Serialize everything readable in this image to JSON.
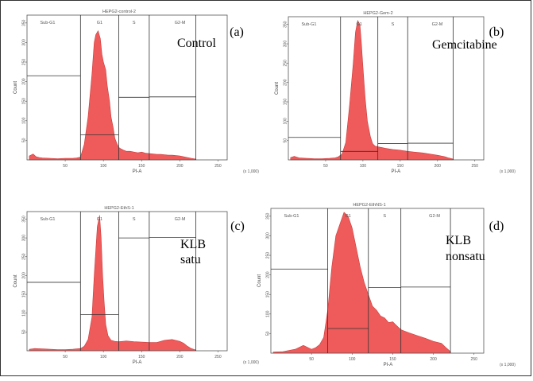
{
  "chart_data": [
    {
      "type": "area",
      "title": "HEPG2-control-2",
      "panel_label": "(a)",
      "treatment": "Control",
      "treatment_line2": "",
      "xlabel": "PI-A",
      "ylabel": "Count",
      "xunit": "(x 1,000)",
      "xticks": [
        "50",
        "100",
        "150",
        "200",
        "250"
      ],
      "yticks": [
        "50",
        "100",
        "150",
        "200",
        "250",
        "300",
        "350"
      ],
      "xlim": [
        0,
        262
      ],
      "ylim": [
        0,
        370
      ],
      "fill_color": "#ef5b5b",
      "gates": [
        {
          "label": "Sub-G1",
          "x0": 0,
          "x1": 70,
          "y": 215
        },
        {
          "label": "G1",
          "x0": 70,
          "x1": 120,
          "y": 64
        },
        {
          "label": "S",
          "x0": 120,
          "x1": 160,
          "y": 160
        },
        {
          "label": "G2-M",
          "x0": 160,
          "x1": 221,
          "y": 161
        }
      ],
      "histogram": {
        "x": [
          3,
          8,
          12,
          16,
          20,
          30,
          40,
          50,
          60,
          65,
          70,
          75,
          80,
          85,
          88,
          90,
          93,
          96,
          98,
          100,
          103,
          105,
          108,
          110,
          113,
          115,
          118,
          120,
          123,
          126,
          130,
          135,
          140,
          145,
          150,
          155,
          160,
          165,
          170,
          175,
          180,
          185,
          190,
          195,
          200,
          205,
          210,
          215,
          221
        ],
        "y": [
          10,
          15,
          8,
          6,
          5,
          4,
          3,
          4,
          4,
          5,
          7,
          40,
          110,
          220,
          300,
          320,
          330,
          310,
          270,
          250,
          230,
          190,
          150,
          110,
          80,
          55,
          40,
          32,
          28,
          25,
          22,
          22,
          20,
          18,
          20,
          17,
          16,
          15,
          14,
          14,
          13,
          12,
          12,
          11,
          10,
          8,
          6,
          4,
          2
        ]
      }
    },
    {
      "type": "area",
      "title": "HEPG2-Gem-2",
      "panel_label": "(b)",
      "treatment": "Gemcitabine",
      "treatment_line2": "",
      "xlabel": "PI-A",
      "ylabel": "Count",
      "xunit": "(x 1,000)",
      "xticks": [
        "50",
        "100",
        "150",
        "200",
        "250"
      ],
      "yticks": [
        "50",
        "100",
        "150",
        "200",
        "250",
        "300",
        "350"
      ],
      "xlim": [
        0,
        262
      ],
      "ylim": [
        0,
        370
      ],
      "fill_color": "#ef5b5b",
      "gates": [
        {
          "label": "Sub-G1",
          "x0": 0,
          "x1": 70,
          "y": 58
        },
        {
          "label": "G1",
          "x0": 70,
          "x1": 120,
          "y": 22
        },
        {
          "label": "S",
          "x0": 120,
          "x1": 160,
          "y": 42
        },
        {
          "label": "G2-M",
          "x0": 160,
          "x1": 221,
          "y": 43
        }
      ],
      "histogram": {
        "x": [
          3,
          8,
          15,
          25,
          35,
          45,
          55,
          62,
          67,
          72,
          77,
          82,
          87,
          90,
          93,
          96,
          98,
          100,
          103,
          106,
          110,
          113,
          116,
          120,
          125,
          130,
          140,
          150,
          160,
          170,
          180,
          190,
          200,
          210,
          215,
          221
        ],
        "y": [
          6,
          9,
          5,
          4,
          3,
          3,
          4,
          5,
          8,
          15,
          45,
          140,
          250,
          330,
          360,
          350,
          300,
          240,
          160,
          100,
          60,
          42,
          36,
          34,
          32,
          30,
          27,
          25,
          22,
          20,
          18,
          15,
          12,
          8,
          5,
          2
        ]
      }
    },
    {
      "type": "area",
      "title": "HEPG2-EthS-1",
      "panel_label": "(c)",
      "treatment": "KLB",
      "treatment_line2": "satu",
      "xlabel": "PI-A",
      "ylabel": "Count",
      "xunit": "(x 1,000)",
      "xticks": [
        "50",
        "100",
        "150",
        "200",
        "250"
      ],
      "yticks": [
        "50",
        "100",
        "150",
        "200",
        "250",
        "300",
        "350"
      ],
      "xlim": [
        0,
        262
      ],
      "ylim": [
        0,
        370
      ],
      "fill_color": "#ef5b5b",
      "gates": [
        {
          "label": "Sub-G1",
          "x0": 0,
          "x1": 70,
          "y": 182
        },
        {
          "label": "G1",
          "x0": 70,
          "x1": 120,
          "y": 96
        },
        {
          "label": "S",
          "x0": 120,
          "x1": 160,
          "y": 300
        },
        {
          "label": "G2-M",
          "x0": 160,
          "x1": 221,
          "y": 301
        }
      ],
      "histogram": {
        "x": [
          3,
          10,
          20,
          30,
          40,
          50,
          60,
          65,
          70,
          75,
          80,
          85,
          88,
          92,
          95,
          97,
          99,
          101,
          103,
          106,
          110,
          115,
          120,
          125,
          130,
          140,
          150,
          160,
          170,
          180,
          190,
          200,
          205,
          210,
          215,
          221
        ],
        "y": [
          4,
          6,
          5,
          4,
          3,
          3,
          4,
          5,
          6,
          12,
          30,
          90,
          200,
          330,
          360,
          300,
          200,
          130,
          70,
          40,
          28,
          25,
          24,
          25,
          26,
          24,
          23,
          22,
          22,
          28,
          30,
          25,
          20,
          12,
          6,
          2
        ]
      }
    },
    {
      "type": "area",
      "title": "HEPG2-EthNS-1",
      "panel_label": "(d)",
      "treatment": "KLB",
      "treatment_line2": "nonsatu",
      "xlabel": "PI-A",
      "ylabel": "Count",
      "xunit": "(x 1,000)",
      "xticks": [
        "50",
        "100",
        "150",
        "200",
        "250"
      ],
      "yticks": [
        "50",
        "100",
        "150",
        "200",
        "250",
        "300",
        "350"
      ],
      "xlim": [
        0,
        262
      ],
      "ylim": [
        0,
        370
      ],
      "fill_color": "#ef5b5b",
      "gates": [
        {
          "label": "Sub-G1",
          "x0": 0,
          "x1": 70,
          "y": 215
        },
        {
          "label": "G1",
          "x0": 70,
          "x1": 120,
          "y": 63
        },
        {
          "label": "S",
          "x0": 120,
          "x1": 160,
          "y": 168
        },
        {
          "label": "G2-M",
          "x0": 160,
          "x1": 221,
          "y": 169
        }
      ],
      "histogram": {
        "x": [
          3,
          15,
          30,
          40,
          45,
          50,
          55,
          60,
          65,
          70,
          75,
          80,
          85,
          90,
          95,
          100,
          105,
          110,
          115,
          120,
          125,
          130,
          135,
          140,
          145,
          150,
          155,
          160,
          170,
          180,
          190,
          200,
          210,
          215,
          221
        ],
        "y": [
          3,
          4,
          10,
          20,
          15,
          10,
          14,
          22,
          40,
          110,
          220,
          300,
          330,
          360,
          350,
          320,
          270,
          220,
          180,
          150,
          120,
          110,
          95,
          90,
          78,
          80,
          70,
          60,
          52,
          45,
          38,
          30,
          25,
          15,
          4
        ]
      }
    }
  ]
}
